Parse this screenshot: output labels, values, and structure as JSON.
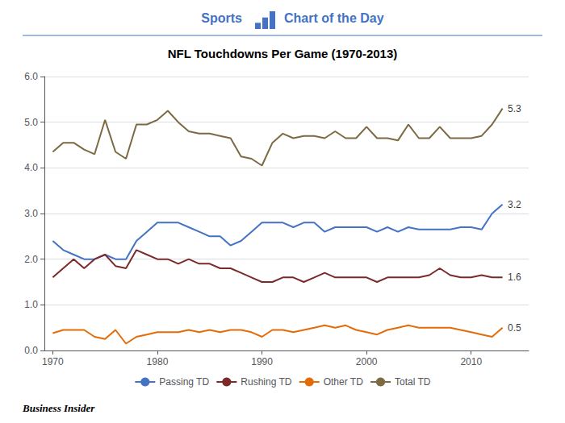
{
  "chart_data": {
    "type": "line",
    "title": "NFL Touchdowns Per Game (1970-2013)",
    "x": [
      1970,
      1971,
      1972,
      1973,
      1974,
      1975,
      1976,
      1977,
      1978,
      1979,
      1980,
      1981,
      1982,
      1983,
      1984,
      1985,
      1986,
      1987,
      1988,
      1989,
      1990,
      1991,
      1992,
      1993,
      1994,
      1995,
      1996,
      1997,
      1998,
      1999,
      2000,
      2001,
      2002,
      2003,
      2004,
      2005,
      2006,
      2007,
      2008,
      2009,
      2010,
      2011,
      2012,
      2013
    ],
    "series": [
      {
        "name": "Passing TD",
        "color": "#4472C4",
        "values": [
          2.4,
          2.2,
          2.1,
          2.0,
          2.0,
          2.1,
          2.0,
          2.0,
          2.4,
          2.6,
          2.8,
          2.8,
          2.8,
          2.7,
          2.6,
          2.5,
          2.5,
          2.3,
          2.4,
          2.6,
          2.8,
          2.8,
          2.8,
          2.7,
          2.8,
          2.8,
          2.6,
          2.7,
          2.7,
          2.7,
          2.7,
          2.6,
          2.7,
          2.6,
          2.7,
          2.65,
          2.65,
          2.65,
          2.65,
          2.7,
          2.7,
          2.65,
          3.0,
          3.2
        ]
      },
      {
        "name": "Rushing TD",
        "color": "#7B2929",
        "values": [
          1.6,
          1.8,
          2.0,
          1.8,
          2.0,
          2.1,
          1.85,
          1.8,
          2.2,
          2.1,
          2.0,
          2.0,
          1.9,
          2.0,
          1.9,
          1.9,
          1.8,
          1.8,
          1.7,
          1.6,
          1.5,
          1.5,
          1.6,
          1.6,
          1.5,
          1.6,
          1.7,
          1.6,
          1.6,
          1.6,
          1.6,
          1.5,
          1.6,
          1.6,
          1.6,
          1.6,
          1.65,
          1.8,
          1.65,
          1.6,
          1.6,
          1.65,
          1.6,
          1.6
        ]
      },
      {
        "name": "Other TD",
        "color": "#E36C09",
        "values": [
          0.38,
          0.45,
          0.45,
          0.45,
          0.3,
          0.25,
          0.45,
          0.15,
          0.3,
          0.35,
          0.4,
          0.4,
          0.4,
          0.45,
          0.4,
          0.45,
          0.4,
          0.45,
          0.45,
          0.4,
          0.3,
          0.45,
          0.45,
          0.4,
          0.45,
          0.5,
          0.55,
          0.5,
          0.55,
          0.45,
          0.4,
          0.35,
          0.45,
          0.5,
          0.55,
          0.5,
          0.5,
          0.5,
          0.5,
          0.45,
          0.4,
          0.35,
          0.3,
          0.5
        ]
      },
      {
        "name": "Total TD",
        "color": "#7B6A42",
        "values": [
          4.35,
          4.55,
          4.55,
          4.4,
          4.3,
          5.05,
          4.35,
          4.2,
          4.95,
          4.95,
          5.05,
          5.25,
          5.0,
          4.8,
          4.75,
          4.75,
          4.7,
          4.65,
          4.25,
          4.2,
          4.05,
          4.55,
          4.75,
          4.65,
          4.7,
          4.7,
          4.65,
          4.8,
          4.65,
          4.65,
          4.9,
          4.65,
          4.65,
          4.6,
          4.95,
          4.65,
          4.65,
          4.9,
          4.65,
          4.65,
          4.65,
          4.7,
          4.95,
          5.3
        ]
      }
    ],
    "xlim": [
      1969.2,
      2015.5
    ],
    "xticks": [
      1970,
      1980,
      1990,
      2000,
      2010
    ],
    "ylim": [
      0.0,
      6.0
    ],
    "yticks": [
      {
        "value": 0,
        "label": "0.0"
      },
      {
        "value": 1,
        "label": "1.0"
      },
      {
        "value": 2,
        "label": "2.0"
      },
      {
        "value": 3,
        "label": "3.0"
      },
      {
        "value": 4,
        "label": "4.0"
      },
      {
        "value": 5,
        "label": "5.0"
      },
      {
        "value": 6,
        "label": "6.0"
      }
    ],
    "grid": true,
    "legend": "bottom",
    "annotations": [
      {
        "text": "Sports"
      },
      {
        "text": "Chart of the Day"
      },
      {
        "text": "Business Insider"
      },
      {
        "text": "3.2",
        "x": 2013.5,
        "y": 3.2
      },
      {
        "text": "1.6",
        "x": 2013.5,
        "y": 1.6
      },
      {
        "text": "0.5",
        "x": 2013.5,
        "y": 0.5
      },
      {
        "text": "5.3",
        "x": 2013.5,
        "y": 5.3
      }
    ]
  }
}
